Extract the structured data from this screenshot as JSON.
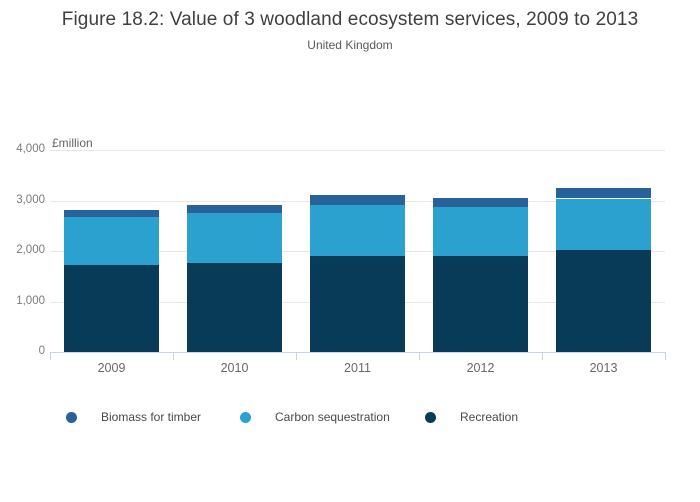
{
  "header": {
    "title": "Figure 18.2: Value of 3 woodland ecosystem services, 2009 to 2013",
    "subtitle": "United Kingdom"
  },
  "chart_data": {
    "type": "bar",
    "stacked": true,
    "title": "Figure 18.2: Value of 3 woodland ecosystem services, 2009 to 2013",
    "subtitle": "United Kingdom",
    "unit_label": "£million",
    "categories": [
      "2009",
      "2010",
      "2011",
      "2012",
      "2013"
    ],
    "series": [
      {
        "name": "Biomass for timber",
        "color": "#276398",
        "values": [
          140,
          170,
          190,
          180,
          210
        ]
      },
      {
        "name": "Carbon sequestration",
        "color": "#2aa1cf",
        "values": [
          950,
          990,
          1010,
          960,
          1020
        ]
      },
      {
        "name": "Recreation",
        "color": "#073b58",
        "values": [
          1720,
          1760,
          1910,
          1910,
          2020
        ]
      }
    ],
    "stack_bottom_to_top": [
      "Recreation",
      "Carbon sequestration",
      "Biomass for timber"
    ],
    "totals": [
      2810,
      2920,
      3110,
      3050,
      3250
    ],
    "ylim": [
      0,
      4000
    ],
    "ytick_values": [
      0,
      1000,
      2000,
      3000,
      4000
    ],
    "ytick_labels": [
      "0",
      "1,000",
      "2,000",
      "3,000",
      "4,000"
    ],
    "grid": true,
    "legend_position": "bottom",
    "colors": {
      "axis_line": "#c8d4e3",
      "gridline": "#e6e6e6",
      "title_text": "#404040",
      "subtitle_text": "#595959",
      "tick_text": "#7b7b7b",
      "category_text": "#686868",
      "legend_text": "#4a4a4a"
    }
  }
}
